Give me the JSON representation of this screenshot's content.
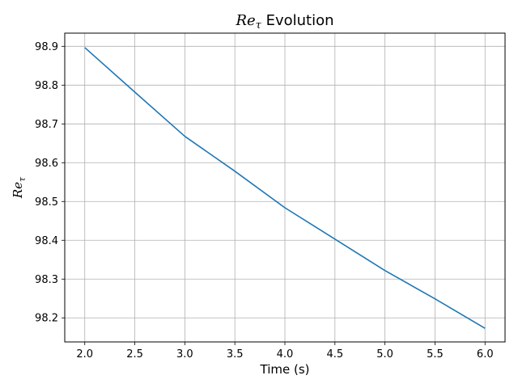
{
  "chart_data": {
    "type": "line",
    "title": {
      "symbol": "Re",
      "subscript": "τ",
      "suffix": " Evolution"
    },
    "xlabel": "Time (s)",
    "ylabel": {
      "symbol": "Re",
      "subscript": "τ"
    },
    "xlim": [
      1.8,
      6.2
    ],
    "ylim": [
      98.138,
      98.934
    ],
    "xticks": [
      2.0,
      2.5,
      3.0,
      3.5,
      4.0,
      4.5,
      5.0,
      5.5,
      6.0
    ],
    "xtick_labels": [
      "2.0",
      "2.5",
      "3.0",
      "3.5",
      "4.0",
      "4.5",
      "5.0",
      "5.5",
      "6.0"
    ],
    "yticks": [
      98.2,
      98.3,
      98.4,
      98.5,
      98.6,
      98.7,
      98.8,
      98.9
    ],
    "ytick_labels": [
      "98.2",
      "98.3",
      "98.4",
      "98.5",
      "98.6",
      "98.7",
      "98.8",
      "98.9"
    ],
    "grid": true,
    "series": [
      {
        "color": "#1f77b4",
        "x": [
          2.0,
          2.5,
          3.0,
          3.5,
          4.0,
          4.5,
          5.0,
          5.5,
          6.0
        ],
        "y": [
          98.897,
          98.782,
          98.668,
          98.578,
          98.484,
          98.403,
          98.322,
          98.249,
          98.173
        ]
      }
    ]
  }
}
